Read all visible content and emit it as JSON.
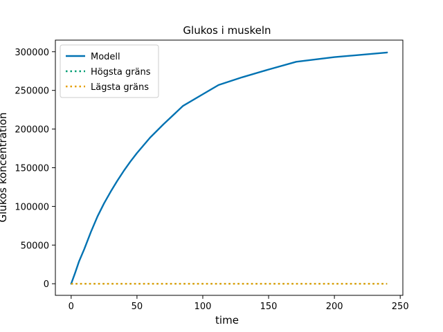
{
  "chart_data": {
    "type": "line",
    "title": "Glukos i muskeln",
    "xlabel": "time",
    "ylabel": "Glukos koncentration",
    "xlim": [
      -12,
      252
    ],
    "ylim": [
      -15000,
      315000
    ],
    "xticks": [
      0,
      50,
      100,
      150,
      200,
      250
    ],
    "yticks": [
      0,
      50000,
      100000,
      150000,
      200000,
      250000,
      300000
    ],
    "grid": false,
    "legend_position": "top-left",
    "series": [
      {
        "name": "Modell",
        "style": "solid",
        "color": "#0072b2",
        "x": [
          0,
          3,
          6,
          10,
          15,
          20,
          25,
          30,
          35,
          40,
          45,
          50,
          60,
          70,
          85,
          100,
          112,
          130,
          150,
          171,
          200,
          240
        ],
        "y": [
          0,
          14000,
          29000,
          45000,
          67000,
          87000,
          104000,
          119000,
          133000,
          146000,
          158000,
          169000,
          189000,
          206000,
          230000,
          245000,
          257000,
          267000,
          277000,
          287000,
          293000,
          299000
        ]
      },
      {
        "name": "Högsta gräns",
        "style": "dotted",
        "color": "#009e73",
        "x": [
          0,
          240
        ],
        "y": [
          0,
          0
        ]
      },
      {
        "name": "Lägsta gräns",
        "style": "dotted",
        "color": "#e69f00",
        "x": [
          0,
          240
        ],
        "y": [
          0,
          0
        ]
      }
    ]
  }
}
